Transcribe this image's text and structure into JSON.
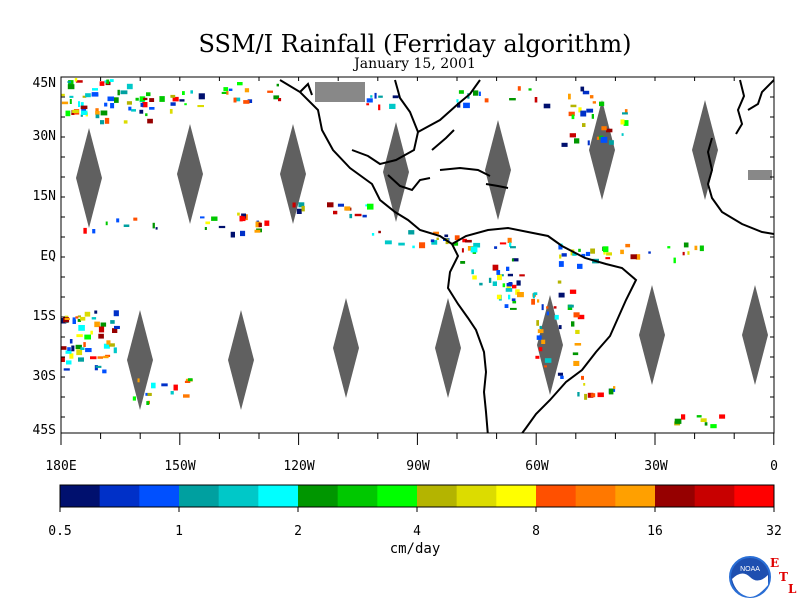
{
  "title": "SSM/I Rainfall (Ferriday algorithm)",
  "date": "January 15, 2001",
  "lat_labels": [
    "45N",
    "30N",
    "15N",
    "EQ",
    "15S",
    "30S",
    "45S"
  ],
  "lon_labels": [
    "180E",
    "150W",
    "120W",
    "90W",
    "60W",
    "30W",
    "0"
  ],
  "colorbar": {
    "unit": "cm/day",
    "tick_labels": [
      "0.5",
      "1",
      "2",
      "4",
      "8",
      "16",
      "32"
    ],
    "colors": [
      "#00106e",
      "#0030c8",
      "#0050ff",
      "#00a0a0",
      "#00c8c8",
      "#00ffff",
      "#009600",
      "#00c800",
      "#00ff00",
      "#b4b400",
      "#dcdc00",
      "#ffff00",
      "#ff5000",
      "#ff7800",
      "#ffa000",
      "#960000",
      "#c80000",
      "#ff0000"
    ]
  },
  "map_colors": {
    "land_outline": "#000000",
    "swath_gap": "#606060",
    "background": "#ffffff"
  },
  "logo": {
    "name": "noaa-logo",
    "text": "NOAA",
    "etl": [
      "E",
      "T",
      "L"
    ]
  }
}
